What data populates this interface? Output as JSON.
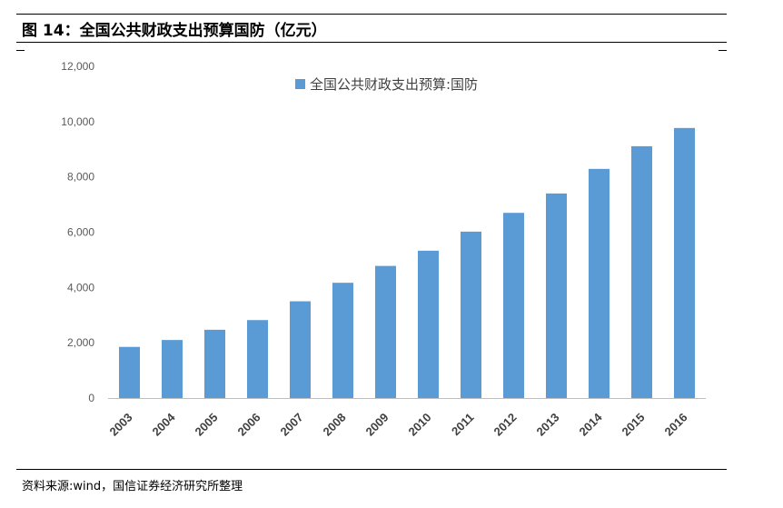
{
  "figure": {
    "title": "图 14：全国公共财政支出预算国防（亿元）",
    "source": "资料来源:wind，国信证券经济研究所整理"
  },
  "chart_data": {
    "type": "bar",
    "categories": [
      "2003",
      "2004",
      "2005",
      "2006",
      "2007",
      "2008",
      "2009",
      "2010",
      "2011",
      "2012",
      "2013",
      "2014",
      "2015",
      "2016"
    ],
    "series": [
      {
        "name": "全国公共财政支出预算:国防",
        "color": "#5b9bd5",
        "values": [
          1850,
          2100,
          2470,
          2820,
          3500,
          4170,
          4780,
          5330,
          6020,
          6700,
          7400,
          8290,
          9110,
          9770
        ]
      }
    ],
    "yticks": [
      "0",
      "2,000",
      "4,000",
      "6,000",
      "8,000",
      "10,000",
      "12,000"
    ],
    "ylim": [
      0,
      12000
    ],
    "grid": false,
    "legend_position": "top"
  }
}
